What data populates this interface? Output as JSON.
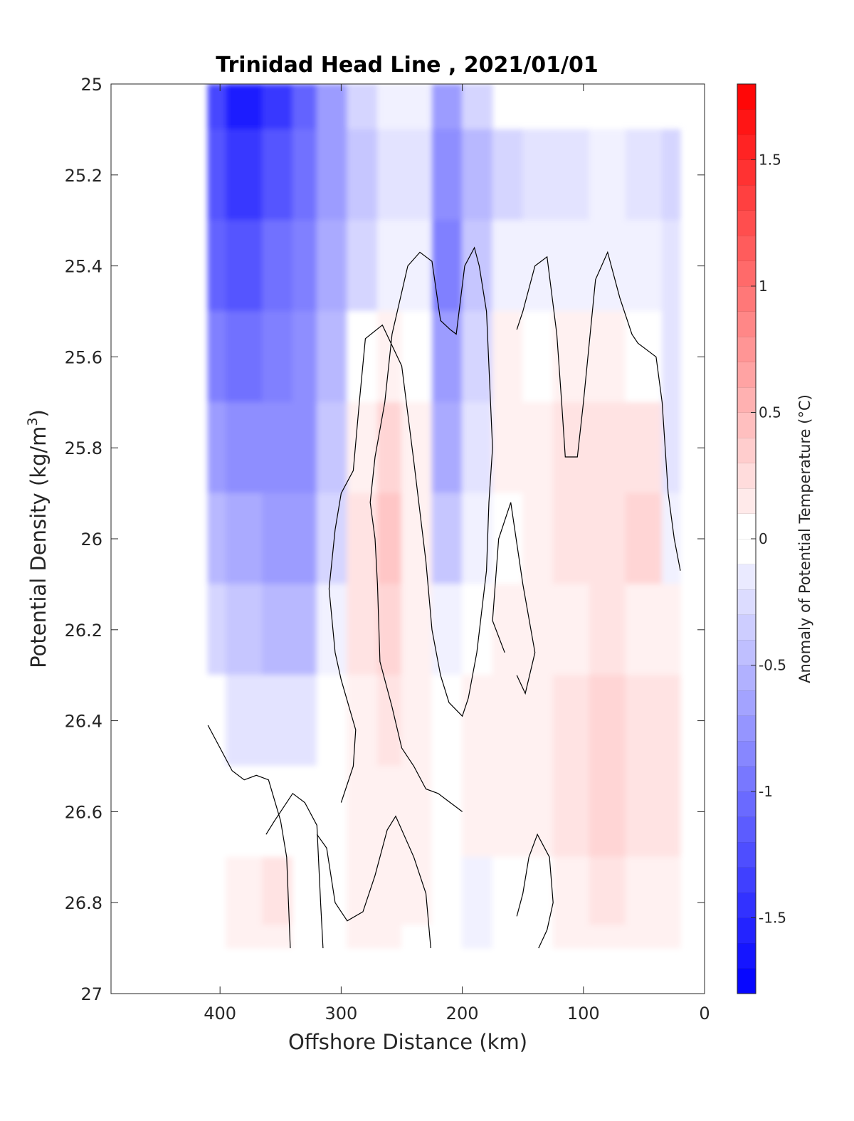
{
  "chart_data": {
    "type": "heatmap",
    "subtype": "filled-contour section",
    "title": "Trinidad Head Line , 2021/01/01",
    "xlabel": "Offshore Distance (km)",
    "ylabel": "Potential Density (kg/m",
    "ylabel_superscript": "3",
    "ylabel_close": ")",
    "xlim": [
      490,
      0
    ],
    "ylim": [
      25,
      27
    ],
    "x_reversed": true,
    "y_reversed": true,
    "xticks": [
      400,
      300,
      200,
      100,
      0
    ],
    "xtick_labels": [
      "400",
      "300",
      "200",
      "100",
      "0"
    ],
    "yticks": [
      25,
      25.2,
      25.4,
      25.6,
      25.8,
      26,
      26.2,
      26.4,
      26.6,
      26.8,
      27
    ],
    "ytick_labels": [
      "25",
      "25.2",
      "25.4",
      "25.6",
      "25.8",
      "26",
      "26.2",
      "26.4",
      "26.6",
      "26.8",
      "27"
    ],
    "colorbar": {
      "label": "Anomaly of Potential Temperature (°C)",
      "range": [
        -1.8,
        1.8
      ],
      "step": 0.1,
      "ticks": [
        -1.5,
        -1,
        -0.5,
        0,
        0.5,
        1,
        1.5
      ],
      "tick_labels": [
        "-1.5",
        "-1",
        "-0.5",
        "0",
        "0.5",
        "1",
        "1.5"
      ],
      "cmap_low": "#0000ff",
      "cmap_mid": "#ffffff",
      "cmap_high": "#ff0000"
    },
    "x": [
      410,
      380,
      350,
      330,
      310,
      280,
      260,
      240,
      210,
      190,
      160,
      140,
      110,
      80,
      50,
      20
    ],
    "y": [
      25.0,
      25.2,
      25.4,
      25.6,
      25.8,
      26.0,
      26.2,
      26.4,
      26.6,
      26.8,
      26.9
    ],
    "z": [
      [
        -1.3,
        -1.6,
        -1.4,
        -1.1,
        -0.7,
        -0.3,
        -0.1,
        -0.1,
        -0.7,
        -0.3,
        null,
        null,
        null,
        null,
        null,
        null
      ],
      [
        -1.2,
        -1.4,
        -1.2,
        -1.0,
        -0.7,
        -0.4,
        -0.2,
        -0.2,
        -0.8,
        -0.5,
        -0.3,
        -0.2,
        -0.2,
        -0.1,
        -0.2,
        -0.3
      ],
      [
        -1.1,
        -1.2,
        -1.0,
        -0.9,
        -0.6,
        -0.3,
        -0.1,
        -0.1,
        -0.9,
        -0.4,
        -0.1,
        -0.1,
        -0.1,
        -0.1,
        -0.1,
        -0.2
      ],
      [
        -0.9,
        -1.0,
        -0.9,
        -0.8,
        -0.5,
        0.0,
        0.1,
        0.0,
        -0.7,
        -0.3,
        0.1,
        0.0,
        0.1,
        0.1,
        0.0,
        -0.2
      ],
      [
        -0.7,
        -0.8,
        -0.8,
        -0.8,
        -0.4,
        0.1,
        0.3,
        0.1,
        -0.6,
        -0.2,
        0.1,
        0.1,
        0.2,
        0.2,
        0.2,
        -0.2
      ],
      [
        -0.5,
        -0.6,
        -0.7,
        -0.7,
        -0.3,
        0.2,
        0.4,
        0.1,
        -0.4,
        -0.1,
        0.0,
        0.1,
        0.2,
        0.2,
        0.3,
        -0.1
      ],
      [
        -0.3,
        -0.4,
        -0.5,
        -0.5,
        -0.1,
        0.2,
        0.3,
        0.1,
        -0.1,
        0.0,
        0.1,
        0.1,
        0.1,
        0.2,
        0.1,
        0.1
      ],
      [
        0.0,
        -0.2,
        -0.2,
        -0.2,
        0.0,
        0.1,
        0.2,
        0.1,
        0.0,
        0.1,
        0.1,
        0.1,
        0.2,
        0.3,
        0.2,
        0.2
      ],
      [
        0.0,
        0.0,
        0.0,
        0.0,
        0.0,
        0.1,
        0.1,
        0.1,
        0.0,
        0.1,
        0.1,
        0.1,
        0.2,
        0.3,
        0.2,
        0.2
      ],
      [
        0.0,
        0.1,
        0.2,
        0.0,
        0.0,
        0.1,
        0.1,
        0.1,
        0.0,
        -0.1,
        0.0,
        0.0,
        0.1,
        0.2,
        0.1,
        0.1
      ],
      [
        0.0,
        0.1,
        0.1,
        0.0,
        0.0,
        0.1,
        0.1,
        0.0,
        0.0,
        -0.1,
        0.0,
        0.0,
        0.1,
        0.1,
        0.1,
        0.1
      ]
    ],
    "zero_contour_lines": [
      [
        [
          410,
          26.41
        ],
        [
          400,
          26.46
        ],
        [
          390,
          26.51
        ],
        [
          380,
          26.53
        ],
        [
          370,
          26.52
        ],
        [
          360,
          26.53
        ],
        [
          350,
          26.62
        ],
        [
          345,
          26.7
        ],
        [
          342,
          26.9
        ]
      ],
      [
        [
          315,
          26.9
        ],
        [
          317,
          26.8
        ],
        [
          320,
          26.63
        ],
        [
          330,
          26.58
        ],
        [
          340,
          26.56
        ],
        [
          350,
          26.6
        ],
        [
          355,
          26.62
        ],
        [
          362,
          26.65
        ]
      ],
      [
        [
          300,
          26.58
        ],
        [
          290,
          26.5
        ],
        [
          288,
          26.42
        ],
        [
          300,
          26.31
        ],
        [
          305,
          26.25
        ],
        [
          310,
          26.11
        ],
        [
          305,
          25.98
        ],
        [
          300,
          25.9
        ],
        [
          290,
          25.85
        ],
        [
          285,
          25.7
        ],
        [
          280,
          25.56
        ],
        [
          266,
          25.53
        ],
        [
          250,
          25.62
        ],
        [
          240,
          25.83
        ],
        [
          230,
          26.05
        ],
        [
          225,
          26.2
        ],
        [
          218,
          26.3
        ],
        [
          211,
          26.36
        ],
        [
          200,
          26.39
        ],
        [
          195,
          26.35
        ],
        [
          188,
          26.25
        ],
        [
          180,
          26.07
        ],
        [
          178,
          25.92
        ],
        [
          175,
          25.8
        ],
        [
          178,
          25.62
        ],
        [
          180,
          25.5
        ],
        [
          186,
          25.4
        ],
        [
          190,
          25.36
        ],
        [
          198,
          25.4
        ],
        [
          205,
          25.55
        ],
        [
          210,
          25.54
        ],
        [
          218,
          25.52
        ],
        [
          225,
          25.39
        ],
        [
          235,
          25.37
        ],
        [
          245,
          25.4
        ],
        [
          258,
          25.55
        ],
        [
          264,
          25.7
        ],
        [
          272,
          25.82
        ],
        [
          276,
          25.92
        ],
        [
          272,
          26.0
        ],
        [
          270,
          26.1
        ],
        [
          268,
          26.27
        ],
        [
          258,
          26.37
        ],
        [
          250,
          26.46
        ],
        [
          240,
          26.5
        ],
        [
          230,
          26.55
        ],
        [
          220,
          26.56
        ],
        [
          210,
          26.58
        ],
        [
          200,
          26.6
        ]
      ],
      [
        [
          226,
          26.9
        ],
        [
          230,
          26.78
        ],
        [
          240,
          26.7
        ],
        [
          255,
          26.61
        ],
        [
          262,
          26.64
        ],
        [
          272,
          26.74
        ],
        [
          282,
          26.82
        ],
        [
          295,
          26.84
        ],
        [
          305,
          26.8
        ],
        [
          312,
          26.68
        ],
        [
          320,
          26.65
        ]
      ],
      [
        [
          137,
          26.9
        ],
        [
          130,
          26.86
        ],
        [
          125,
          26.8
        ],
        [
          128,
          26.7
        ],
        [
          138,
          26.65
        ],
        [
          145,
          26.7
        ],
        [
          150,
          26.78
        ],
        [
          155,
          26.83
        ]
      ],
      [
        [
          155,
          26.3
        ],
        [
          148,
          26.34
        ],
        [
          140,
          26.25
        ],
        [
          150,
          26.1
        ],
        [
          160,
          25.92
        ],
        [
          170,
          26.0
        ],
        [
          175,
          26.18
        ],
        [
          165,
          26.25
        ]
      ],
      [
        [
          20,
          26.07
        ],
        [
          25,
          26.0
        ],
        [
          30,
          25.9
        ],
        [
          35,
          25.7
        ],
        [
          40,
          25.6
        ],
        [
          55,
          25.57
        ],
        [
          60,
          25.55
        ],
        [
          70,
          25.47
        ],
        [
          80,
          25.37
        ],
        [
          90,
          25.43
        ],
        [
          100,
          25.7
        ],
        [
          105,
          25.82
        ],
        [
          115,
          25.82
        ],
        [
          118,
          25.7
        ],
        [
          122,
          25.55
        ],
        [
          130,
          25.38
        ],
        [
          140,
          25.4
        ],
        [
          150,
          25.5
        ],
        [
          155,
          25.54
        ]
      ]
    ]
  }
}
